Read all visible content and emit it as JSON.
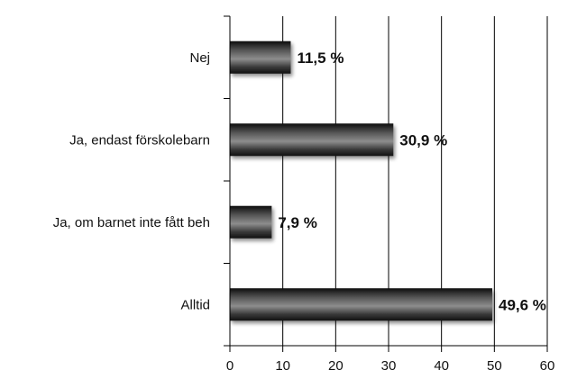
{
  "chart_data": {
    "type": "bar",
    "orientation": "horizontal",
    "categories": [
      "Nej",
      "Ja, endast förskolebarn",
      "Ja, om barnet inte fått beh",
      "Alltid"
    ],
    "values": [
      11.5,
      30.9,
      7.9,
      49.6
    ],
    "value_labels": [
      "11,5 %",
      "30,9 %",
      "7,9 %",
      "49,6 %"
    ],
    "xlim": [
      0,
      60
    ],
    "xticks": [
      0,
      10,
      20,
      30,
      40,
      50,
      60
    ],
    "xtick_labels": [
      "0",
      "10",
      "20",
      "30",
      "40",
      "50",
      "60"
    ],
    "grid": true,
    "legend": false,
    "bar_color": "#3a3a3a"
  }
}
